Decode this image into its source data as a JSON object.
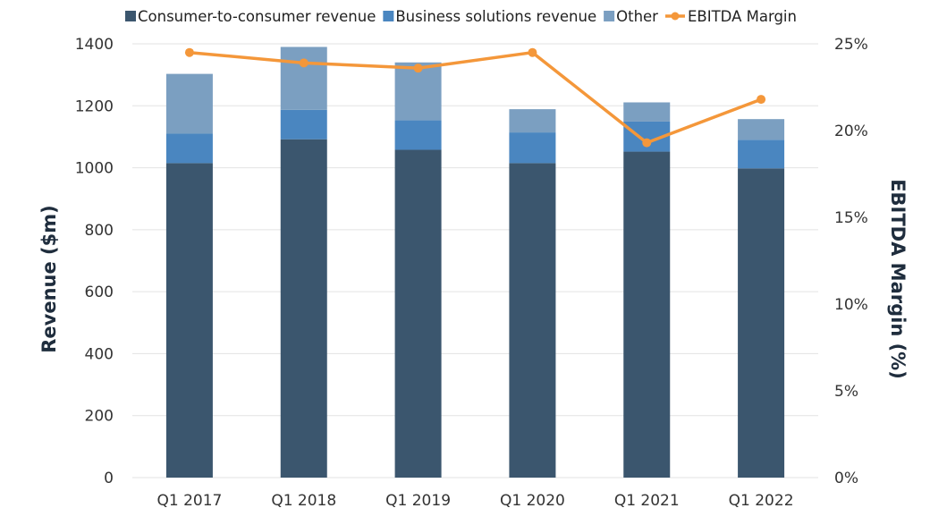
{
  "chart_data": {
    "type": "bar",
    "stacked": true,
    "categories": [
      "Q1 2017",
      "Q1 2018",
      "Q1 2019",
      "Q1 2020",
      "Q1 2021",
      "Q1 2022"
    ],
    "series": [
      {
        "name": "Consumer-to-consumer revenue",
        "values": [
          1015,
          1092,
          1058,
          1015,
          1052,
          998
        ],
        "color": "#3b566e"
      },
      {
        "name": "Business solutions revenue",
        "values": [
          95,
          95,
          95,
          99,
          97,
          92
        ],
        "color": "#4a86c0"
      },
      {
        "name": "Other",
        "values": [
          193,
          203,
          187,
          75,
          62,
          67
        ],
        "color": "#7b9fc1"
      }
    ],
    "line_series": {
      "name": "EBITDA Margin",
      "values": [
        24.5,
        23.9,
        23.6,
        24.5,
        19.3,
        21.8
      ],
      "color": "#f4973a",
      "axis": "right"
    },
    "ylabel": "Revenue ($m)",
    "y2label": "EBITDA  Margin (%)",
    "ylim": [
      0,
      1400
    ],
    "yticks": [
      0,
      200,
      400,
      600,
      800,
      1000,
      1200,
      1400
    ],
    "y2lim": [
      0,
      25
    ],
    "y2ticks": [
      "0%",
      "5%",
      "10%",
      "15%",
      "20%",
      "25%"
    ],
    "y2tick_values": [
      0,
      5,
      10,
      15,
      20,
      25
    ],
    "grid": true,
    "legend_position": "top"
  }
}
